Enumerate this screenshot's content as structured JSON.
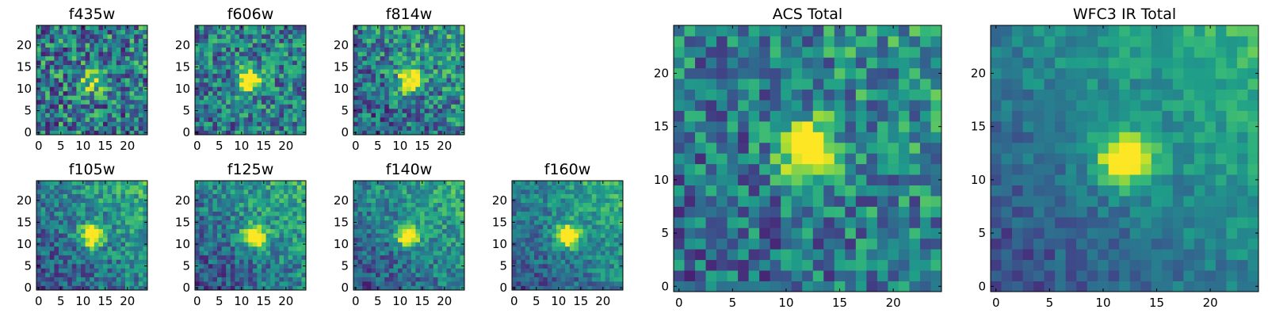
{
  "colormap": "viridis",
  "chart_data": [
    {
      "type": "heatmap",
      "title": "f435w",
      "grid_size": 25,
      "xlim": [
        0,
        24
      ],
      "ylim": [
        0,
        24
      ],
      "xticks": [
        "0",
        "5",
        "10",
        "15",
        "20"
      ],
      "yticks": [
        "0",
        "5",
        "10",
        "15",
        "20"
      ],
      "source_center": [
        12,
        12
      ],
      "source_amplitude": 0.5,
      "background_gradient": 0.05,
      "noise_level": 0.35
    },
    {
      "type": "heatmap",
      "title": "f606w",
      "grid_size": 25,
      "xlim": [
        0,
        24
      ],
      "ylim": [
        0,
        24
      ],
      "xticks": [
        "0",
        "5",
        "10",
        "15",
        "20"
      ],
      "yticks": [
        "0",
        "5",
        "10",
        "15",
        "20"
      ],
      "source_center": [
        12,
        12
      ],
      "source_amplitude": 0.9,
      "background_gradient": 0.1,
      "noise_level": 0.3
    },
    {
      "type": "heatmap",
      "title": "f814w",
      "grid_size": 25,
      "xlim": [
        0,
        24
      ],
      "ylim": [
        0,
        24
      ],
      "xticks": [
        "0",
        "5",
        "10",
        "15",
        "20"
      ],
      "yticks": [
        "0",
        "5",
        "10",
        "15",
        "20"
      ],
      "source_center": [
        12,
        12
      ],
      "source_amplitude": 0.8,
      "background_gradient": 0.45,
      "noise_level": 0.3
    },
    {
      "type": "heatmap",
      "title": "f105w",
      "grid_size": 25,
      "xlim": [
        0,
        24
      ],
      "ylim": [
        0,
        24
      ],
      "xticks": [
        "0",
        "5",
        "10",
        "15",
        "20"
      ],
      "yticks": [
        "0",
        "5",
        "10",
        "15",
        "20"
      ],
      "source_center": [
        12,
        12
      ],
      "source_amplitude": 0.75,
      "background_gradient": 0.7,
      "noise_level": 0.22
    },
    {
      "type": "heatmap",
      "title": "f125w",
      "grid_size": 25,
      "xlim": [
        0,
        24
      ],
      "ylim": [
        0,
        24
      ],
      "xticks": [
        "0",
        "5",
        "10",
        "15",
        "20"
      ],
      "yticks": [
        "0",
        "5",
        "10",
        "15",
        "20"
      ],
      "source_center": [
        13,
        12
      ],
      "source_amplitude": 0.75,
      "background_gradient": 0.75,
      "noise_level": 0.22
    },
    {
      "type": "heatmap",
      "title": "f140w",
      "grid_size": 25,
      "xlim": [
        0,
        24
      ],
      "ylim": [
        0,
        24
      ],
      "xticks": [
        "0",
        "5",
        "10",
        "15",
        "20"
      ],
      "yticks": [
        "0",
        "5",
        "10",
        "15",
        "20"
      ],
      "source_center": [
        12,
        12
      ],
      "source_amplitude": 0.8,
      "background_gradient": 0.75,
      "noise_level": 0.2
    },
    {
      "type": "heatmap",
      "title": "f160w",
      "grid_size": 25,
      "xlim": [
        0,
        24
      ],
      "ylim": [
        0,
        24
      ],
      "xticks": [
        "0",
        "5",
        "10",
        "15",
        "20"
      ],
      "yticks": [
        "0",
        "5",
        "10",
        "15",
        "20"
      ],
      "source_center": [
        12,
        12
      ],
      "source_amplitude": 0.85,
      "background_gradient": 0.8,
      "noise_level": 0.18
    },
    {
      "type": "heatmap",
      "title": "ACS Total",
      "grid_size": 25,
      "xlim": [
        0,
        24
      ],
      "ylim": [
        0,
        24
      ],
      "xticks": [
        "0",
        "5",
        "10",
        "15",
        "20"
      ],
      "yticks": [
        "0",
        "5",
        "10",
        "15",
        "20"
      ],
      "source_center": [
        12,
        13
      ],
      "source_amplitude": 0.85,
      "background_gradient": 0.35,
      "noise_level": 0.28
    },
    {
      "type": "heatmap",
      "title": "WFC3 IR Total",
      "grid_size": 25,
      "xlim": [
        0,
        24
      ],
      "ylim": [
        0,
        24
      ],
      "xticks": [
        "0",
        "5",
        "10",
        "15",
        "20"
      ],
      "yticks": [
        "0",
        "5",
        "10",
        "15",
        "20"
      ],
      "source_center": [
        12,
        12
      ],
      "source_amplitude": 0.7,
      "background_gradient": 0.85,
      "noise_level": 0.12
    }
  ]
}
